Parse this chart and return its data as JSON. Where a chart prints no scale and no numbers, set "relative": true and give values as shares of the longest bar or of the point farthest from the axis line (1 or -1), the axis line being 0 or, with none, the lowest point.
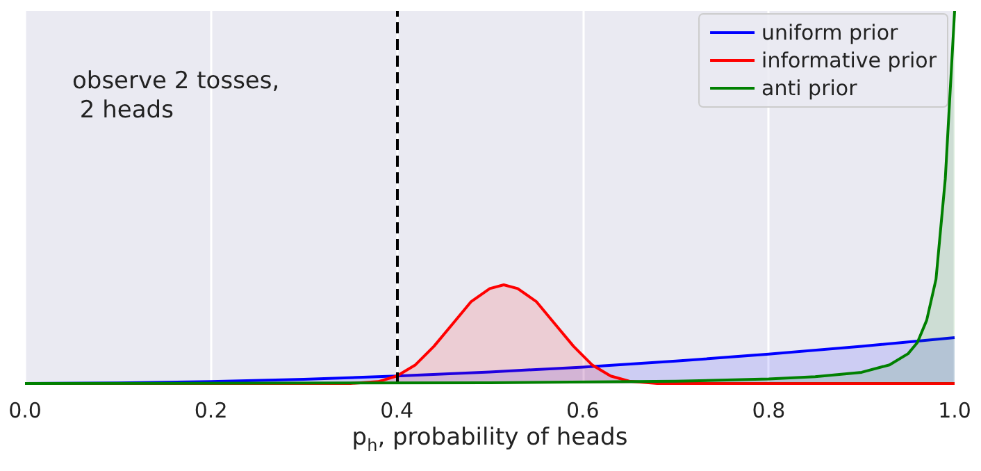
{
  "chart_data": {
    "type": "area",
    "relative": true,
    "xlabel": "p$_{h}$, probability of heads",
    "annotations": [
      "observe 2 tosses,\n 2 heads"
    ],
    "xlim": [
      0,
      1
    ],
    "xticks": [
      {
        "value": 0,
        "label": "0.0"
      },
      {
        "value": 0.2,
        "label": "0.2"
      },
      {
        "value": 0.4,
        "label": "0.4"
      },
      {
        "value": 0.6,
        "label": "0.6"
      },
      {
        "value": 0.8,
        "label": "0.8"
      },
      {
        "value": 1,
        "label": "1.0"
      }
    ],
    "grid": "x",
    "legend": "top right",
    "line_style": "solid",
    "marker": "none",
    "ref_lines": [
      {
        "axis": "x",
        "value": 0.4,
        "color": "#000000",
        "line_style": "dashed"
      }
    ],
    "series": [
      {
        "name": "uniform prior",
        "color": "#0000ff",
        "x": [
          0,
          0.1,
          0.2,
          0.3,
          0.4,
          0.5,
          0.6,
          0.7,
          0.8,
          0.9,
          1
        ],
        "values": [
          0,
          0.0012,
          0.0049,
          0.011,
          0.02,
          0.031,
          0.044,
          0.06,
          0.079,
          0.1,
          0.123
        ]
      },
      {
        "name": "informative prior",
        "color": "#ff0000",
        "x": [
          0,
          0.35,
          0.38,
          0.4,
          0.42,
          0.44,
          0.46,
          0.48,
          0.5,
          0.515,
          0.53,
          0.55,
          0.57,
          0.59,
          0.61,
          0.63,
          0.65,
          0.68,
          1
        ],
        "values": [
          0,
          0,
          0.005,
          0.02,
          0.05,
          0.1,
          0.16,
          0.22,
          0.255,
          0.265,
          0.255,
          0.22,
          0.16,
          0.1,
          0.05,
          0.02,
          0.006,
          0,
          0
        ]
      },
      {
        "name": "anti prior",
        "color": "#008000",
        "x": [
          0,
          0.5,
          0.7,
          0.8,
          0.85,
          0.9,
          0.93,
          0.95,
          0.96,
          0.97,
          0.98,
          0.99,
          1
        ],
        "values": [
          0,
          0.002,
          0.006,
          0.012,
          0.018,
          0.03,
          0.05,
          0.08,
          0.11,
          0.17,
          0.28,
          0.55,
          1
        ]
      }
    ]
  }
}
